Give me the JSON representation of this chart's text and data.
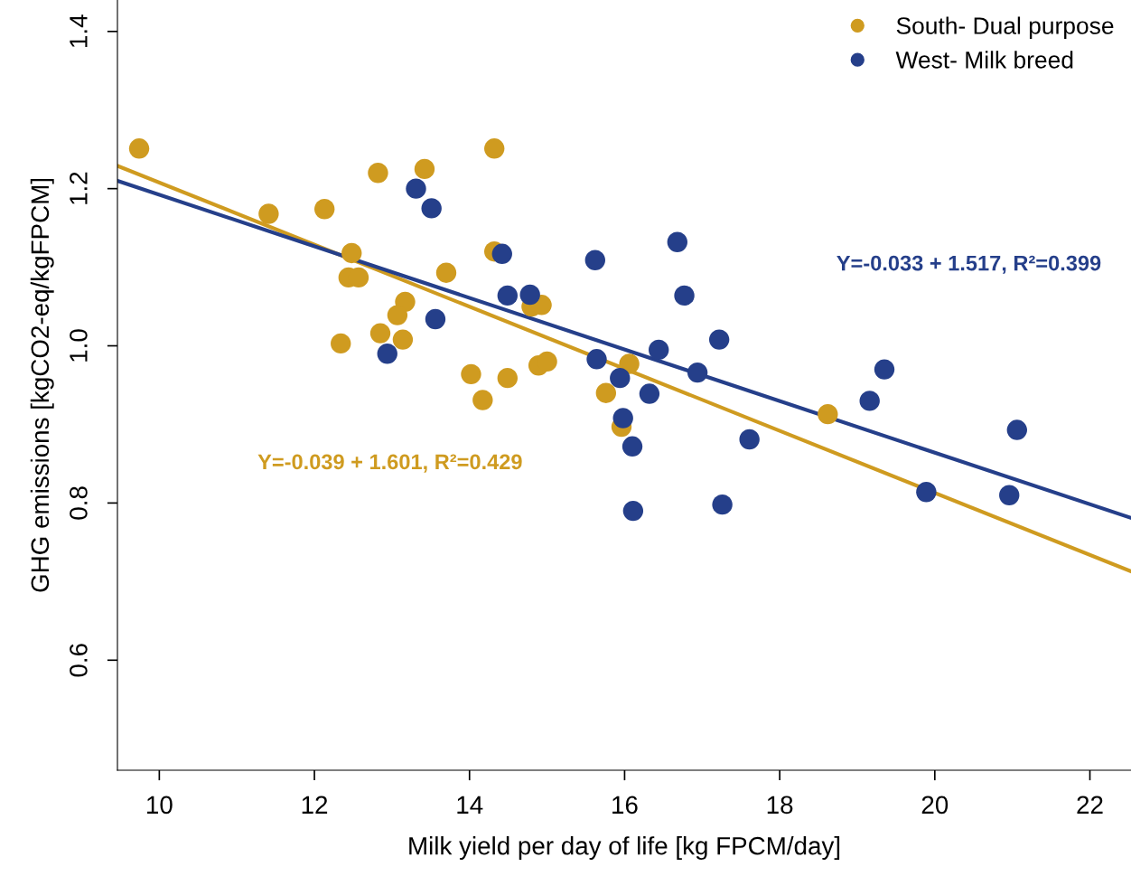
{
  "chart_data": {
    "type": "scatter",
    "xlabel": "Milk yield per day of life [kg FPCM/day]",
    "ylabel": "GHG emissions [kgCO2-eq/kgFPCM]",
    "xlim": [
      9.46,
      22.53
    ],
    "ylim": [
      0.46,
      1.44
    ],
    "xticks": [
      10,
      12,
      14,
      16,
      18,
      20,
      22
    ],
    "yticks": [
      0.6,
      0.8,
      {
        "value": 1.0,
        "label": "1.0"
      },
      1.2,
      1.4
    ],
    "grid": false,
    "legend": "top right",
    "marker": "circle",
    "series": [
      {
        "name": "South- Dual purpose",
        "color": "#cf9b20",
        "x": [
          9.74,
          11.41,
          12.13,
          12.82,
          13.42,
          14.32,
          12.48,
          12.44,
          12.57,
          14.32,
          13.7,
          13.17,
          13.07,
          12.34,
          12.85,
          13.14,
          14.02,
          14.17,
          14.49,
          14.8,
          14.93,
          14.89,
          15.0,
          15.76,
          16.06,
          15.96,
          18.62
        ],
        "values": [
          1.251,
          1.168,
          1.174,
          1.22,
          1.225,
          1.251,
          1.118,
          1.087,
          1.087,
          1.12,
          1.093,
          1.056,
          1.039,
          1.003,
          1.016,
          1.008,
          0.964,
          0.931,
          0.959,
          1.05,
          1.052,
          0.975,
          0.98,
          0.94,
          0.977,
          0.897,
          0.913
        ]
      },
      {
        "name": "West- Milk breed",
        "color": "#253f8a",
        "x": [
          13.31,
          13.51,
          13.56,
          12.94,
          14.42,
          14.49,
          14.78,
          15.62,
          16.68,
          16.77,
          15.64,
          15.94,
          16.44,
          17.22,
          16.94,
          16.32,
          15.98,
          16.1,
          16.11,
          17.26,
          17.61,
          19.16,
          19.35,
          19.89,
          20.96,
          21.06
        ],
        "values": [
          1.2,
          1.175,
          1.034,
          0.99,
          1.117,
          1.064,
          1.065,
          1.109,
          1.132,
          1.064,
          0.983,
          0.959,
          0.995,
          1.008,
          0.966,
          0.939,
          0.908,
          0.872,
          0.79,
          0.798,
          0.881,
          0.93,
          0.97,
          0.814,
          0.81,
          0.893
        ]
      },
      {
        "type": "line",
        "marker": "none",
        "color": "#cf9b20",
        "x": [
          9.46,
          22.53
        ],
        "values": [
          1.229,
          0.713
        ]
      },
      {
        "type": "line",
        "marker": "none",
        "color": "#253f8a",
        "x": [
          9.46,
          22.53
        ],
        "values": [
          1.21,
          0.781
        ]
      }
    ],
    "annotations": [
      "Y=-0.039 + 1.601, R²=0.429",
      "Y=-0.033 + 1.517, R²=0.399"
    ]
  }
}
